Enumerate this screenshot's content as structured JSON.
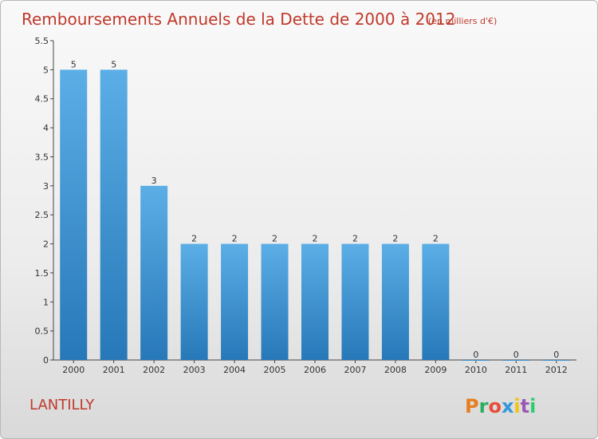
{
  "title": "Remboursements Annuels de la Dette de 2000 à 2012",
  "subtitle": "(en milliers d'€)",
  "commune": "LANTILLY",
  "logo": "Proxiti",
  "colors": {
    "title": "#c0392b",
    "bar_top": "#5baee6",
    "bar_bottom": "#2778b8",
    "logo": [
      "#e67e22",
      "#27ae60",
      "#e74c3c",
      "#3498db",
      "#f1c40f",
      "#9b59b6",
      "#2ecc71"
    ]
  },
  "chart_data": {
    "type": "bar",
    "title": "Remboursements Annuels de la Dette de 2000 à 2012",
    "subtitle": "(en milliers d'€)",
    "categories": [
      "2000",
      "2001",
      "2002",
      "2003",
      "2004",
      "2005",
      "2006",
      "2007",
      "2008",
      "2009",
      "2010",
      "2011",
      "2012"
    ],
    "values": [
      5,
      5,
      3,
      2,
      2,
      2,
      2,
      2,
      2,
      2,
      0,
      0,
      0
    ],
    "ylim": [
      0,
      5.5
    ],
    "yticks": [
      "0",
      "0.5",
      "1",
      "1.5",
      "2",
      "2.5",
      "3",
      "3.5",
      "4",
      "4.5",
      "5",
      "5.5"
    ],
    "grid": false,
    "legend": "none"
  }
}
